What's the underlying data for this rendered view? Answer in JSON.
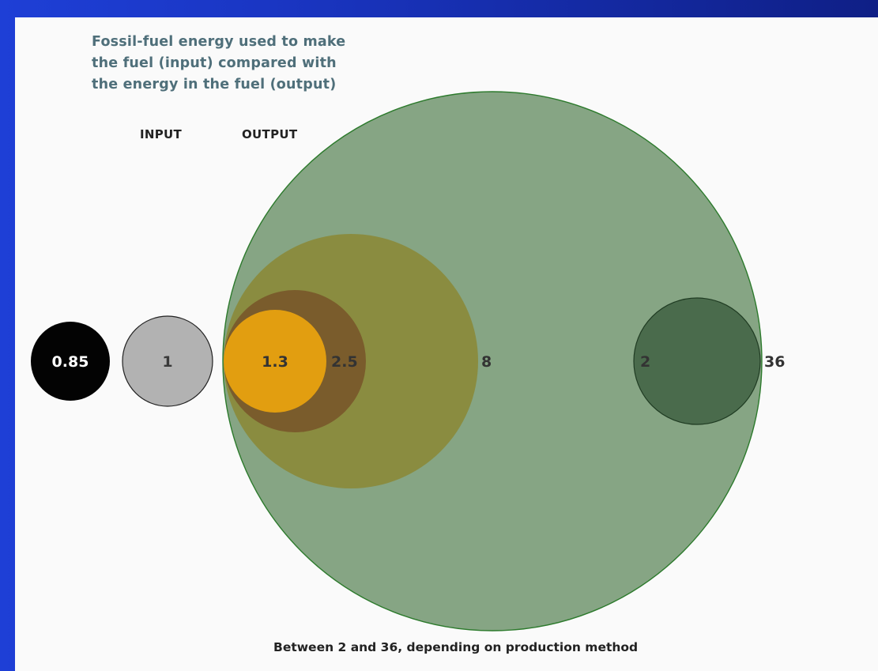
{
  "chart_data": {
    "type": "bubble",
    "title_lines": [
      "Fossil-fuel energy used to make",
      "the fuel (input) compared with",
      "the energy in the fuel (output)"
    ],
    "column_headers": {
      "input": "INPUT",
      "output": "OUTPUT"
    },
    "bubbles": [
      {
        "value": 0.85,
        "label": "0.85",
        "group": "input",
        "fill": "#030303",
        "text_color": "#ffffff"
      },
      {
        "value": 1,
        "label": "1",
        "group": "input",
        "fill": "#b2b2b2",
        "text_color": "#3a3a3a"
      },
      {
        "value": 36,
        "label": "36",
        "group": "output",
        "fill": "#86a584",
        "text_color": "#333333"
      },
      {
        "value": 8,
        "label": "8",
        "group": "output",
        "fill": "#8a8c40",
        "text_color": "#333333"
      },
      {
        "value": 2.5,
        "label": "2.5",
        "group": "output",
        "fill": "#7a5c2c",
        "text_color": "#333333"
      },
      {
        "value": 1.3,
        "label": "1.3",
        "group": "output",
        "fill": "#e29e10",
        "text_color": "#333333"
      },
      {
        "value": 2,
        "label": "2",
        "group": "output",
        "fill": "#4a6b4c",
        "text_color": "#333333"
      }
    ],
    "caption": "Between 2 and 36, depending on production method"
  }
}
